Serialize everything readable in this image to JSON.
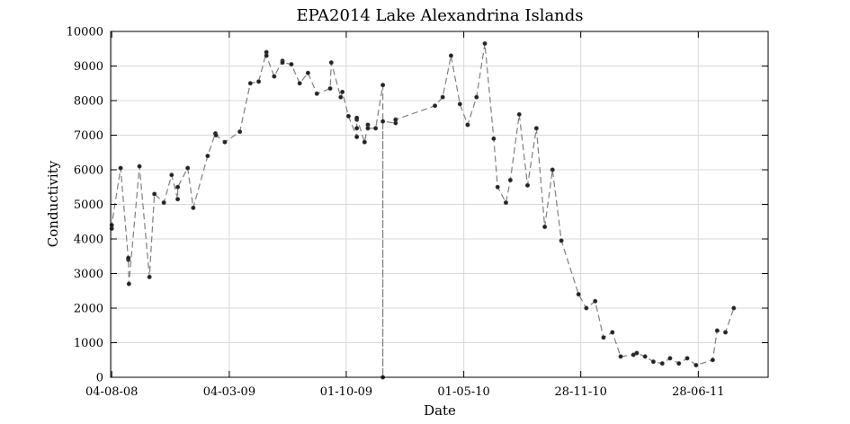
{
  "chart_data": {
    "type": "line",
    "title": "EPA2014 Lake Alexandrina Islands",
    "xlabel": "Date",
    "ylabel": "Conductivity",
    "x_tick_labels": [
      "04-08-08",
      "04-03-09",
      "01-10-09",
      "01-05-10",
      "28-11-10",
      "28-06-11"
    ],
    "x_range": [
      "2008-08-02",
      "2011-11-01"
    ],
    "ylim": [
      0,
      10000
    ],
    "y_ticks": [
      0,
      1000,
      2000,
      3000,
      4000,
      5000,
      6000,
      7000,
      8000,
      9000,
      10000
    ],
    "grid": true,
    "line_style": "dashed",
    "color": "#222222",
    "series": [
      {
        "points": [
          [
            "2008-08-04",
            4300
          ],
          [
            "2008-08-04",
            4400
          ],
          [
            "2008-08-20",
            6050
          ],
          [
            "2008-09-03",
            3400
          ],
          [
            "2008-09-03",
            3450
          ],
          [
            "2008-09-04",
            2700
          ],
          [
            "2008-09-23",
            6100
          ],
          [
            "2008-10-11",
            2900
          ],
          [
            "2008-10-20",
            5300
          ],
          [
            "2008-11-06",
            5050
          ],
          [
            "2008-11-20",
            5850
          ],
          [
            "2008-12-01",
            5150
          ],
          [
            "2008-12-01",
            5500
          ],
          [
            "2008-12-19",
            6050
          ],
          [
            "2008-12-29",
            4900
          ],
          [
            "2009-01-24",
            6400
          ],
          [
            "2009-02-07",
            7050
          ],
          [
            "2009-02-08",
            7000
          ],
          [
            "2009-02-24",
            6800
          ],
          [
            "2009-03-23",
            7100
          ],
          [
            "2009-04-11",
            8500
          ],
          [
            "2009-04-26",
            8550
          ],
          [
            "2009-05-10",
            9400
          ],
          [
            "2009-05-10",
            9300
          ],
          [
            "2009-05-24",
            8700
          ],
          [
            "2009-06-08",
            9150
          ],
          [
            "2009-06-08",
            9100
          ],
          [
            "2009-06-24",
            9050
          ],
          [
            "2009-07-09",
            8500
          ],
          [
            "2009-07-24",
            8800
          ],
          [
            "2009-08-09",
            8200
          ],
          [
            "2009-09-02",
            8350
          ],
          [
            "2009-09-04",
            9100
          ],
          [
            "2009-09-21",
            8100
          ],
          [
            "2009-09-24",
            8250
          ],
          [
            "2009-10-05",
            7550
          ],
          [
            "2009-10-20",
            6950
          ],
          [
            "2009-10-20",
            7200
          ],
          [
            "2009-10-20",
            7450
          ],
          [
            "2009-10-20",
            7500
          ],
          [
            "2009-11-03",
            6800
          ],
          [
            "2009-11-09",
            7300
          ],
          [
            "2009-11-09",
            7200
          ],
          [
            "2009-11-23",
            7200
          ],
          [
            "2009-12-06",
            8450
          ],
          [
            "2009-12-06",
            0
          ],
          [
            "2009-12-06",
            7400
          ],
          [
            "2009-12-29",
            7350
          ],
          [
            "2009-12-29",
            7450
          ],
          [
            "2010-03-10",
            7850
          ],
          [
            "2010-03-24",
            8100
          ],
          [
            "2010-04-08",
            9300
          ],
          [
            "2010-04-24",
            7900
          ],
          [
            "2010-05-08",
            7300
          ],
          [
            "2010-05-24",
            8100
          ],
          [
            "2010-06-08",
            9650
          ],
          [
            "2010-06-24",
            6900
          ],
          [
            "2010-07-01",
            5500
          ],
          [
            "2010-07-16",
            5050
          ],
          [
            "2010-07-24",
            5700
          ],
          [
            "2010-08-09",
            7600
          ],
          [
            "2010-08-24",
            5550
          ],
          [
            "2010-09-09",
            7200
          ],
          [
            "2010-09-24",
            4350
          ],
          [
            "2010-10-08",
            6000
          ],
          [
            "2010-10-24",
            3950
          ],
          [
            "2010-11-24",
            2400
          ],
          [
            "2010-12-08",
            2000
          ],
          [
            "2010-12-24",
            2200
          ],
          [
            "2011-01-08",
            1150
          ],
          [
            "2011-01-24",
            1300
          ],
          [
            "2011-02-08",
            600
          ],
          [
            "2011-03-03",
            650
          ],
          [
            "2011-03-09",
            700
          ],
          [
            "2011-03-24",
            600
          ],
          [
            "2011-04-08",
            450
          ],
          [
            "2011-04-24",
            400
          ],
          [
            "2011-05-08",
            550
          ],
          [
            "2011-05-24",
            400
          ],
          [
            "2011-06-08",
            550
          ],
          [
            "2011-06-24",
            350
          ],
          [
            "2011-07-24",
            500
          ],
          [
            "2011-08-01",
            1350
          ],
          [
            "2011-08-16",
            1300
          ],
          [
            "2011-08-31",
            2000
          ]
        ]
      }
    ]
  }
}
